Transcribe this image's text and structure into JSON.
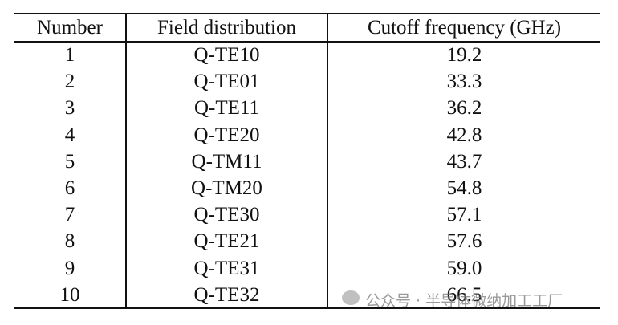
{
  "table": {
    "header": [
      "Number",
      "Field distribution",
      "Cutoff frequency (GHz)"
    ],
    "rows": [
      [
        "1",
        "Q-TE10",
        "19.2"
      ],
      [
        "2",
        "Q-TE01",
        "33.3"
      ],
      [
        "3",
        "Q-TE11",
        "36.2"
      ],
      [
        "4",
        "Q-TE20",
        "42.8"
      ],
      [
        "5",
        "Q-TM11",
        "43.7"
      ],
      [
        "6",
        "Q-TM20",
        "54.8"
      ],
      [
        "7",
        "Q-TE30",
        "57.1"
      ],
      [
        "8",
        "Q-TE21",
        "57.6"
      ],
      [
        "9",
        "Q-TE31",
        "59.0"
      ],
      [
        "10",
        "Q-TE32",
        "66.5"
      ]
    ]
  },
  "watermark": "公众号 · 半导体微纳加工工厂"
}
